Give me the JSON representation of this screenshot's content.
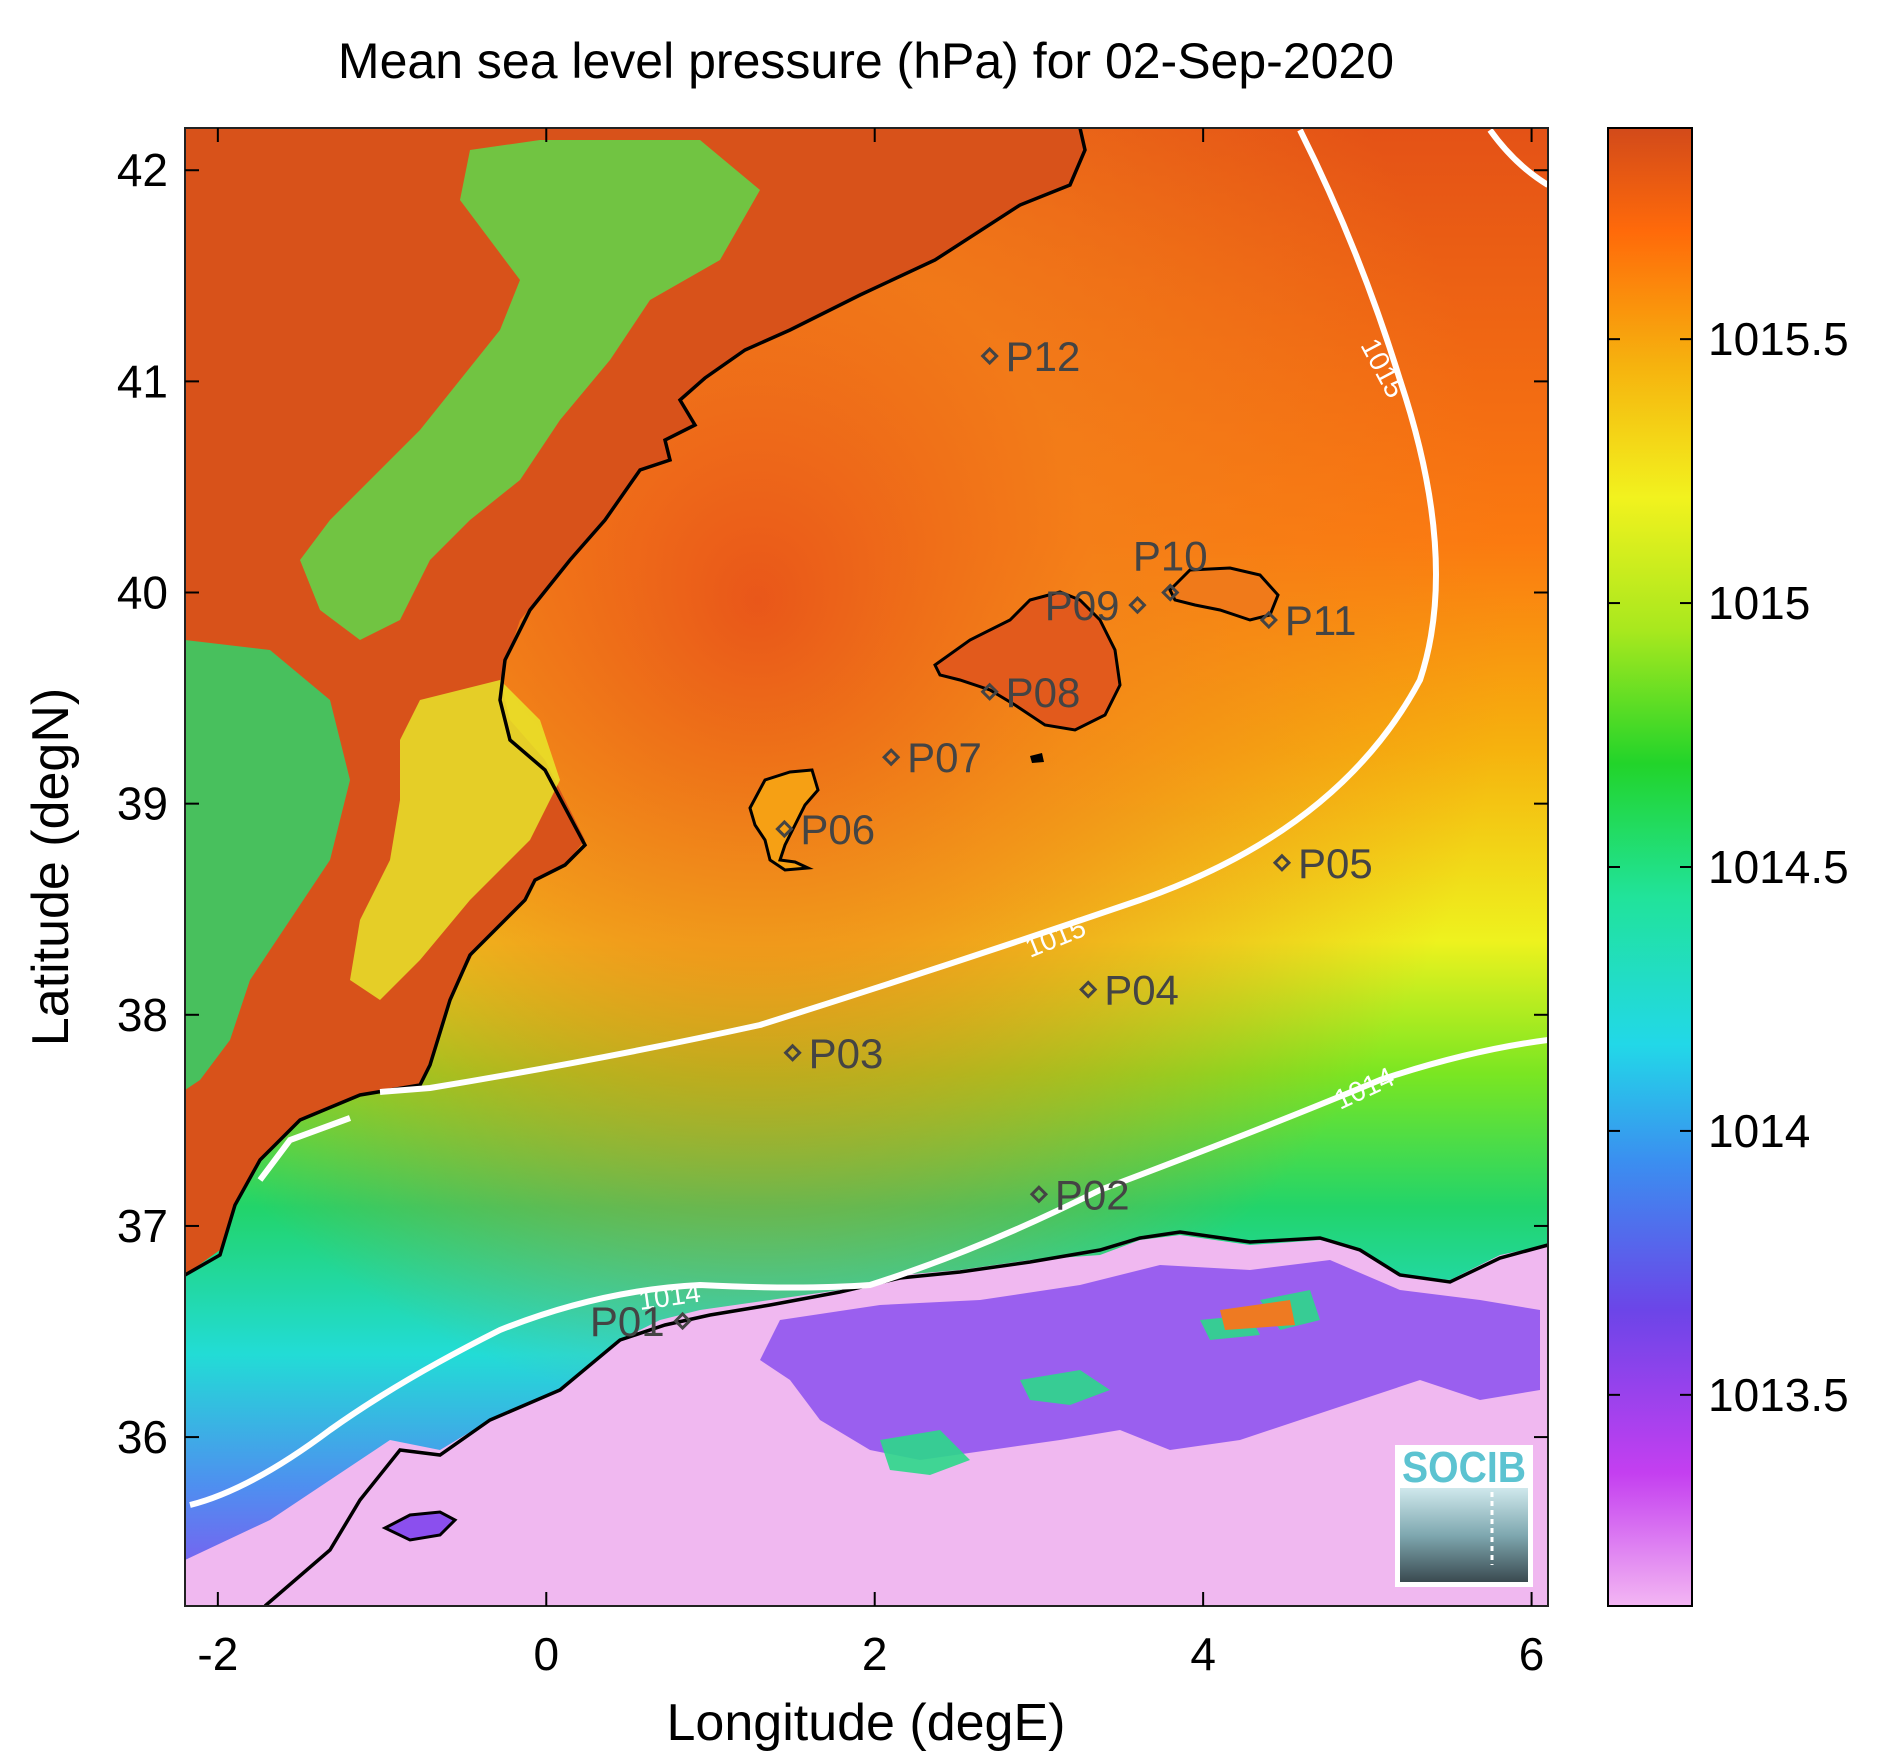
{
  "title": "Mean sea level pressure (hPa) for 02-Sep-2020",
  "xlabel": "Longitude (degE)",
  "ylabel": "Latitude (degN)",
  "xlim": [
    -2.2,
    6.1
  ],
  "ylim": [
    35.2,
    42.2
  ],
  "xticks": [
    {
      "value": -2,
      "label": "-2"
    },
    {
      "value": 0,
      "label": "0"
    },
    {
      "value": 2,
      "label": "2"
    },
    {
      "value": 4,
      "label": "4"
    },
    {
      "value": 6,
      "label": "6"
    }
  ],
  "yticks": [
    {
      "value": 36,
      "label": "36"
    },
    {
      "value": 37,
      "label": "37"
    },
    {
      "value": 38,
      "label": "38"
    },
    {
      "value": 39,
      "label": "39"
    },
    {
      "value": 40,
      "label": "40"
    },
    {
      "value": 41,
      "label": "41"
    },
    {
      "value": 42,
      "label": "42"
    }
  ],
  "colorbar": {
    "range": [
      1013.1,
      1015.9
    ],
    "ticks": [
      {
        "value": 1013.5,
        "label": "1013.5"
      },
      {
        "value": 1014,
        "label": "1014"
      },
      {
        "value": 1014.5,
        "label": "1014.5"
      },
      {
        "value": 1015,
        "label": "1015"
      },
      {
        "value": 1015.5,
        "label": "1015.5"
      }
    ],
    "colors": [
      "#f3b6f3",
      "#c43ff0",
      "#6c45e8",
      "#3b8ef0",
      "#22d8e8",
      "#21e39a",
      "#22d42a",
      "#a8e81e",
      "#f2f21e",
      "#f6b20e",
      "#ff6a0a",
      "#d24a1a"
    ]
  },
  "contour_labels": [
    "1015",
    "1015",
    "1014",
    "1014"
  ],
  "stations": [
    {
      "id": "P01",
      "lon": 0.83,
      "lat": 36.55
    },
    {
      "id": "P02",
      "lon": 3.0,
      "lat": 37.15
    },
    {
      "id": "P03",
      "lon": 1.5,
      "lat": 37.82
    },
    {
      "id": "P04",
      "lon": 3.3,
      "lat": 38.12
    },
    {
      "id": "P05",
      "lon": 4.48,
      "lat": 38.72
    },
    {
      "id": "P06",
      "lon": 1.45,
      "lat": 38.88
    },
    {
      "id": "P07",
      "lon": 2.1,
      "lat": 39.22
    },
    {
      "id": "P08",
      "lon": 2.7,
      "lat": 39.53
    },
    {
      "id": "P09",
      "lon": 3.6,
      "lat": 39.94
    },
    {
      "id": "P10",
      "lon": 3.8,
      "lat": 40.0
    },
    {
      "id": "P11",
      "lon": 4.4,
      "lat": 39.87
    },
    {
      "id": "P12",
      "lon": 2.7,
      "lat": 41.12
    }
  ],
  "logo_text": "SOCIB"
}
